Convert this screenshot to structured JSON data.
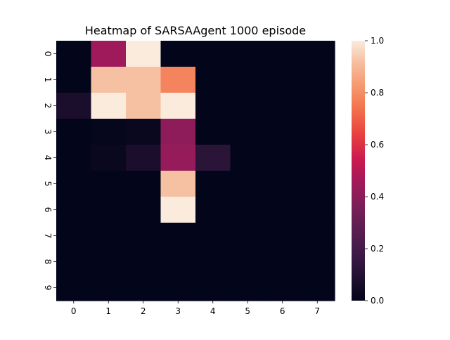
{
  "chart_data": {
    "type": "heatmap",
    "title": "Heatmap of SARSAAgent 1000 episode",
    "xlabel": "",
    "ylabel": "",
    "x_categories": [
      "0",
      "1",
      "2",
      "3",
      "4",
      "5",
      "6",
      "7"
    ],
    "y_categories": [
      "0",
      "1",
      "2",
      "3",
      "4",
      "5",
      "6",
      "7",
      "8",
      "9"
    ],
    "values": [
      [
        0.0,
        0.45,
        1.0,
        0.0,
        0.0,
        0.0,
        0.0,
        0.0
      ],
      [
        0.0,
        0.92,
        0.92,
        0.78,
        0.0,
        0.0,
        0.0,
        0.0
      ],
      [
        0.07,
        1.0,
        0.92,
        1.0,
        0.0,
        0.0,
        0.0,
        0.0
      ],
      [
        0.0,
        0.01,
        0.02,
        0.41,
        0.0,
        0.0,
        0.0,
        0.0
      ],
      [
        0.0,
        0.02,
        0.07,
        0.43,
        0.12,
        0.0,
        0.0,
        0.0
      ],
      [
        0.0,
        0.0,
        0.0,
        0.92,
        0.0,
        0.0,
        0.0,
        0.0
      ],
      [
        0.0,
        0.0,
        0.0,
        1.0,
        0.0,
        0.0,
        0.0,
        0.0
      ],
      [
        0.0,
        0.0,
        0.0,
        0.0,
        0.0,
        0.0,
        0.0,
        0.0
      ],
      [
        0.0,
        0.0,
        0.0,
        0.0,
        0.0,
        0.0,
        0.0,
        0.0
      ],
      [
        0.0,
        0.0,
        0.0,
        0.0,
        0.0,
        0.0,
        0.0,
        0.0
      ]
    ],
    "colorbar": {
      "range": [
        0.0,
        1.0
      ],
      "ticks": [
        "0.0",
        "0.2",
        "0.4",
        "0.6",
        "0.8",
        "1.0"
      ],
      "colormap": "rocket",
      "stops": [
        "#03051a",
        "#211131",
        "#3e1a47",
        "#5b1e51",
        "#7a1f58",
        "#a11a5b",
        "#cb1b4f",
        "#e83f3f",
        "#f26c4a",
        "#f5966a",
        "#f6bb9b",
        "#faebdd"
      ]
    },
    "grid": false,
    "legend": "colorbar-right"
  }
}
